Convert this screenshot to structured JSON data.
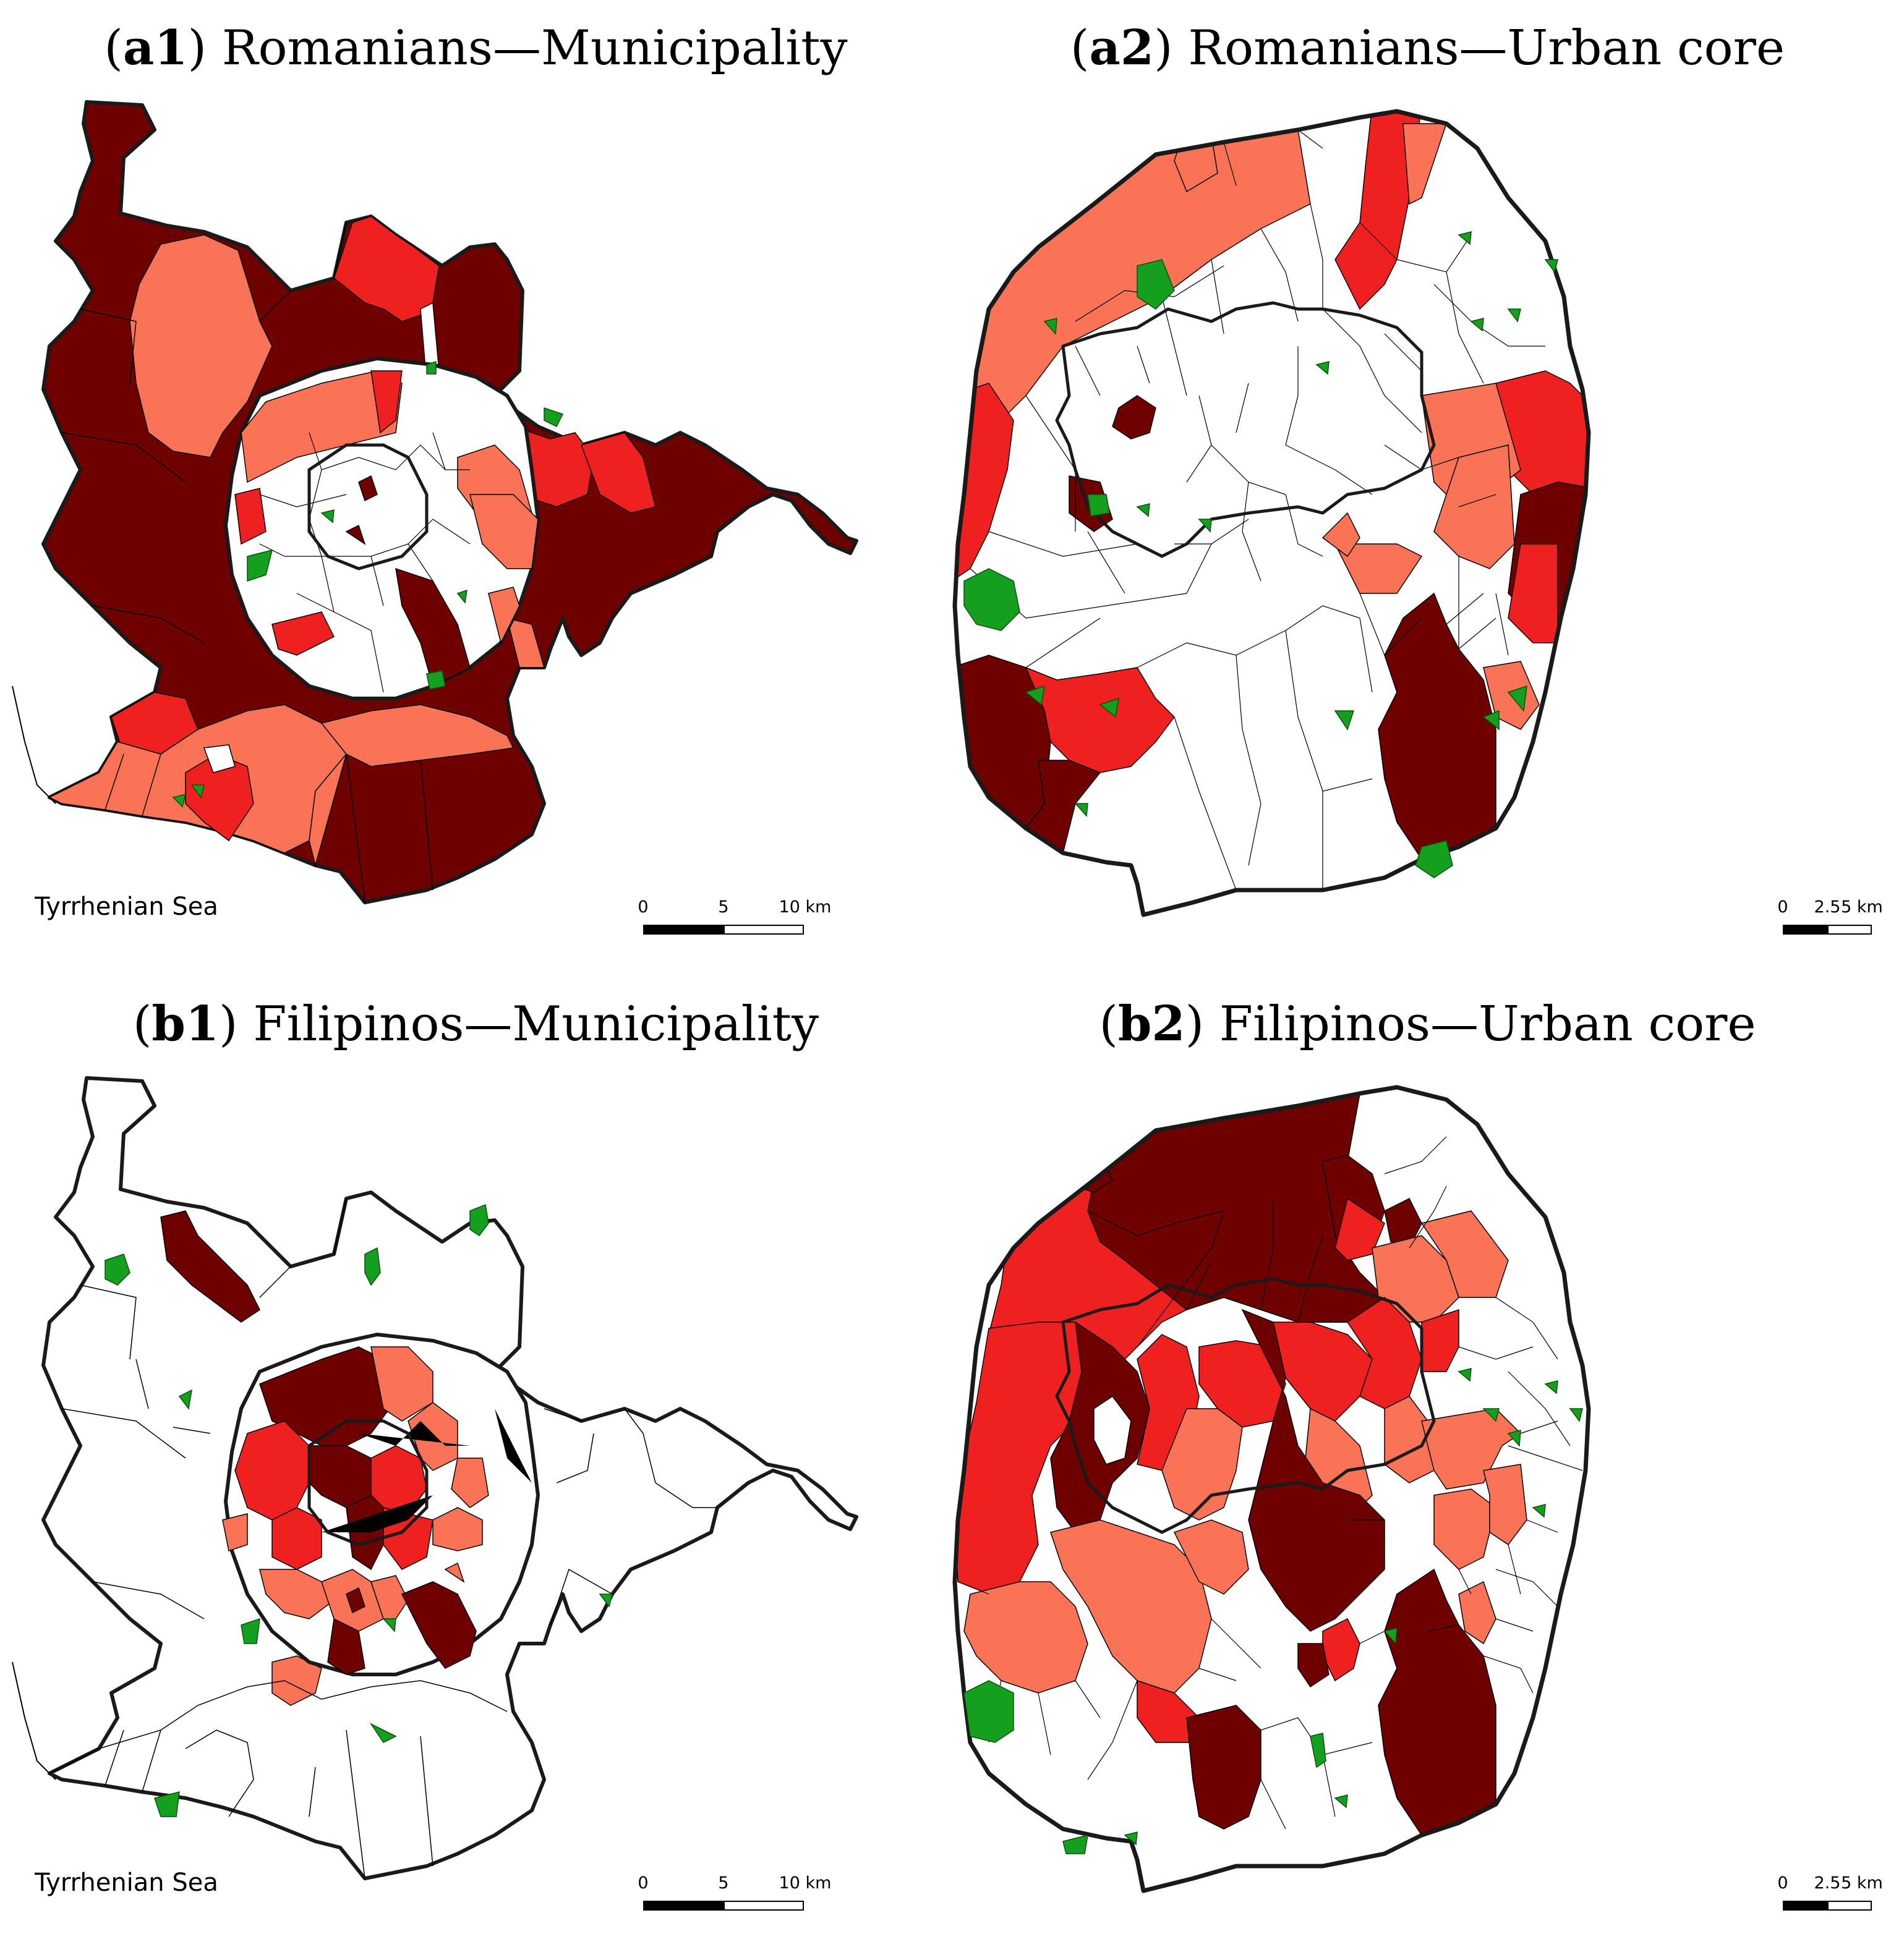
{
  "colors": {
    "dark": "#6e0000",
    "red": "#ee2020",
    "salmon": "#fa7357",
    "green": "#14a01e",
    "boundary": "#1a1a1a",
    "background": "#ffffff"
  },
  "panels": [
    {
      "id": "a1",
      "title_letter": "a1",
      "title_rest": "Romanians—Municipality",
      "sea_label": "Tyrrhenian Sea",
      "scale": {
        "t0": "0",
        "t1": "5",
        "t2": "10 km"
      }
    },
    {
      "id": "a2",
      "title_letter": "a2",
      "title_rest": "Romanians—Urban core",
      "scale": {
        "t0": "0",
        "t1": "2.5",
        "t2": "5 km"
      }
    },
    {
      "id": "b1",
      "title_letter": "b1",
      "title_rest": "Filipinos—Municipality",
      "sea_label": "Tyrrhenian Sea",
      "scale": {
        "t0": "0",
        "t1": "5",
        "t2": "10 km"
      }
    },
    {
      "id": "b2",
      "title_letter": "b2",
      "title_rest": "Filipinos—Urban core",
      "scale": {
        "t0": "0",
        "t1": "2.5",
        "t2": "5 km"
      }
    }
  ]
}
